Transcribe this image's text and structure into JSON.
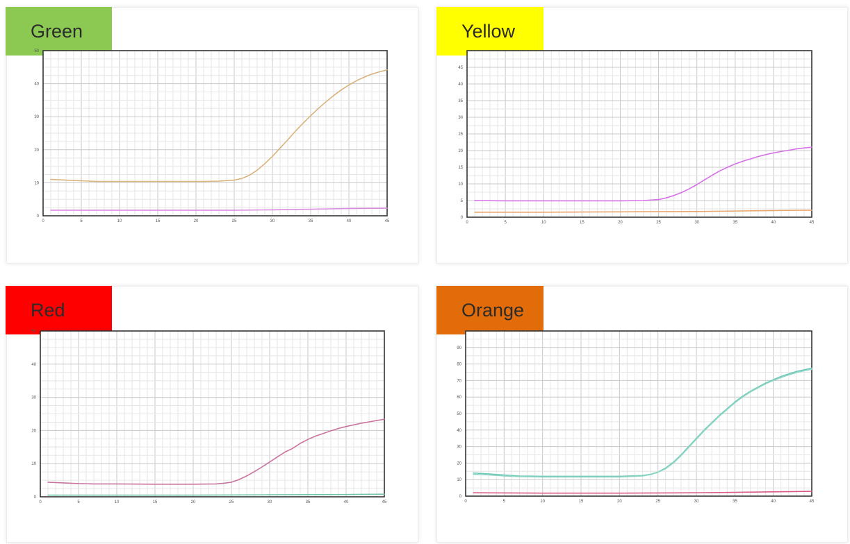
{
  "chart_data": [
    {
      "type": "line",
      "label": "Green",
      "label_color": "#8bc952",
      "xlim": [
        0,
        45
      ],
      "ylim": [
        0,
        50
      ],
      "x_ticks": [
        0,
        5,
        10,
        15,
        20,
        25,
        30,
        35,
        40,
        45
      ],
      "y_ticks": [
        0,
        10,
        20,
        30,
        40,
        50
      ],
      "series": [
        {
          "color": "#d9b27c",
          "x": [
            1,
            3,
            5,
            7,
            9,
            11,
            13,
            15,
            17,
            19,
            21,
            23,
            25,
            26,
            27,
            28,
            29,
            30,
            31,
            32,
            33,
            34,
            35,
            36,
            37,
            38,
            39,
            40,
            41,
            42,
            43,
            44,
            45
          ],
          "y": [
            11,
            10.8,
            10.6,
            10.4,
            10.4,
            10.4,
            10.4,
            10.4,
            10.4,
            10.4,
            10.4,
            10.5,
            10.8,
            11.3,
            12.3,
            13.8,
            15.8,
            18,
            20.5,
            23,
            25.6,
            28,
            30.3,
            32.5,
            34.5,
            36.4,
            38.1,
            39.6,
            40.9,
            42,
            42.9,
            43.6,
            44.2
          ]
        },
        {
          "color": "#d98ae0",
          "x": [
            1,
            10,
            20,
            25,
            30,
            35,
            40,
            45
          ],
          "y": [
            1.7,
            1.7,
            1.7,
            1.7,
            1.8,
            2.0,
            2.2,
            2.3
          ]
        }
      ]
    },
    {
      "type": "line",
      "label": "Yellow",
      "label_color": "#ffff00",
      "xlim": [
        0,
        45
      ],
      "ylim": [
        0,
        50
      ],
      "x_ticks": [
        0,
        5,
        10,
        15,
        20,
        25,
        30,
        35,
        40,
        45
      ],
      "y_ticks": [
        0,
        5,
        10,
        15,
        20,
        25,
        30,
        35,
        40,
        45
      ],
      "series": [
        {
          "color": "#d670e8",
          "x": [
            1,
            5,
            10,
            15,
            20,
            23,
            25,
            26,
            27,
            28,
            29,
            30,
            31,
            32,
            33,
            34,
            35,
            36,
            37,
            38,
            39,
            40,
            41,
            42,
            43,
            44,
            45
          ],
          "y": [
            5,
            4.9,
            4.9,
            4.9,
            4.9,
            5,
            5.3,
            5.8,
            6.5,
            7.4,
            8.5,
            9.8,
            11.2,
            12.6,
            13.9,
            15,
            16,
            16.8,
            17.5,
            18.2,
            18.8,
            19.3,
            19.7,
            20.1,
            20.5,
            20.8,
            21
          ]
        },
        {
          "color": "#e8a66c",
          "x": [
            1,
            10,
            20,
            30,
            40,
            45
          ],
          "y": [
            1.5,
            1.5,
            1.6,
            1.7,
            2.0,
            2.1
          ]
        }
      ]
    },
    {
      "type": "line",
      "label": "Red",
      "label_color": "#ff0000",
      "xlim": [
        0,
        45
      ],
      "ylim": [
        0,
        50
      ],
      "x_ticks": [
        0,
        5,
        10,
        15,
        20,
        25,
        30,
        35,
        40,
        45
      ],
      "y_ticks": [
        0,
        10,
        20,
        30,
        40,
        50
      ],
      "series": [
        {
          "color": "#c9739e",
          "x": [
            1,
            3,
            5,
            7,
            10,
            15,
            20,
            23,
            24,
            25,
            26,
            27,
            28,
            29,
            30,
            31,
            32,
            33,
            34,
            35,
            36,
            37,
            38,
            39,
            40,
            41,
            42,
            43,
            44,
            45
          ],
          "y": [
            4.4,
            4.2,
            4.0,
            3.9,
            3.9,
            3.8,
            3.8,
            3.9,
            4.1,
            4.4,
            5.2,
            6.3,
            7.6,
            9.0,
            10.5,
            12.0,
            13.5,
            14.6,
            16.1,
            17.3,
            18.3,
            19.1,
            19.9,
            20.6,
            21.2,
            21.7,
            22.2,
            22.6,
            23.0,
            23.4
          ]
        },
        {
          "color": "#6fc5a8",
          "x": [
            1,
            10,
            20,
            30,
            40,
            45
          ],
          "y": [
            0.5,
            0.5,
            0.5,
            0.6,
            0.7,
            0.8
          ]
        }
      ]
    },
    {
      "type": "line",
      "label": "Orange",
      "label_color": "#e36c0a",
      "xlim": [
        0,
        45
      ],
      "ylim": [
        0,
        100
      ],
      "x_ticks": [
        0,
        5,
        10,
        15,
        20,
        25,
        30,
        35,
        40,
        45
      ],
      "y_ticks": [
        0,
        10,
        20,
        30,
        40,
        50,
        60,
        70,
        80,
        90
      ],
      "series": [
        {
          "color": "#6ec9b6",
          "x": [
            1,
            3,
            5,
            7,
            10,
            15,
            20,
            23,
            24,
            25,
            26,
            27,
            28,
            29,
            30,
            31,
            32,
            33,
            34,
            35,
            36,
            37,
            38,
            39,
            40,
            41,
            42,
            43,
            44,
            45
          ],
          "y": [
            14,
            13.5,
            12.8,
            12.2,
            12,
            12,
            12,
            12.5,
            13.2,
            14.6,
            17,
            20.5,
            25,
            30,
            35,
            40,
            44.5,
            49,
            53,
            57,
            60.5,
            63.5,
            66,
            68.5,
            70.5,
            72.5,
            74,
            75.5,
            76.5,
            77.5
          ]
        },
        {
          "color": "#8fd6c7",
          "x": [
            1,
            3,
            5,
            7,
            10,
            15,
            20,
            23,
            24,
            25,
            26,
            27,
            28,
            29,
            30,
            31,
            32,
            33,
            34,
            35,
            36,
            37,
            38,
            39,
            40,
            41,
            42,
            43,
            44,
            45
          ],
          "y": [
            13.2,
            12.8,
            12.2,
            11.8,
            11.6,
            11.6,
            11.6,
            12.2,
            13.0,
            14.4,
            16.6,
            20.0,
            24.5,
            29.5,
            34.5,
            39.5,
            44,
            48.5,
            52.5,
            56.5,
            60,
            63,
            65.5,
            68,
            70,
            71.8,
            73.4,
            74.8,
            75.9,
            76.8
          ]
        },
        {
          "color": "#d95c82",
          "x": [
            1,
            10,
            20,
            30,
            40,
            45
          ],
          "y": [
            2,
            1.8,
            1.8,
            2.0,
            2.6,
            2.9
          ]
        }
      ]
    }
  ]
}
